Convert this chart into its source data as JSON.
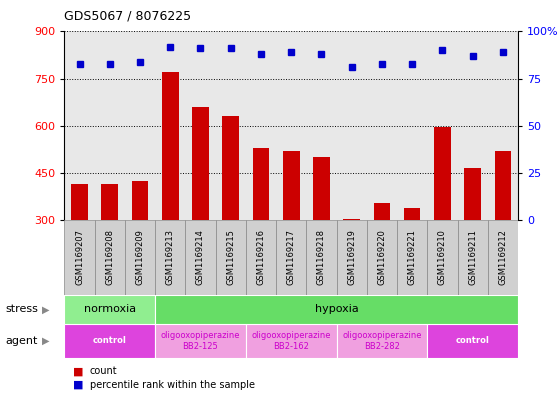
{
  "title": "GDS5067 / 8076225",
  "samples": [
    "GSM1169207",
    "GSM1169208",
    "GSM1169209",
    "GSM1169213",
    "GSM1169214",
    "GSM1169215",
    "GSM1169216",
    "GSM1169217",
    "GSM1169218",
    "GSM1169219",
    "GSM1169220",
    "GSM1169221",
    "GSM1169210",
    "GSM1169211",
    "GSM1169212"
  ],
  "counts": [
    415,
    415,
    425,
    770,
    660,
    630,
    530,
    520,
    500,
    305,
    355,
    340,
    595,
    465,
    520
  ],
  "percentiles": [
    83,
    83,
    84,
    92,
    91,
    91,
    88,
    89,
    88,
    81,
    83,
    83,
    90,
    87,
    89
  ],
  "ylim_left": [
    300,
    900
  ],
  "ylim_right": [
    0,
    100
  ],
  "yticks_left": [
    300,
    450,
    600,
    750,
    900
  ],
  "yticks_right": [
    0,
    25,
    50,
    75,
    100
  ],
  "bar_color": "#cc0000",
  "dot_color": "#0000cc",
  "plot_bg_color": "#e8e8e8",
  "label_row_bg": "#c8c8c8",
  "stress_groups": [
    {
      "label": "normoxia",
      "start": 0,
      "end": 3,
      "color": "#90ee90"
    },
    {
      "label": "hypoxia",
      "start": 3,
      "end": 15,
      "color": "#66dd66"
    }
  ],
  "agent_groups": [
    {
      "label": "control",
      "start": 0,
      "end": 3,
      "color": "#dd44dd",
      "text_color": "#ffffff",
      "bold": true
    },
    {
      "label": "oligooxopiperazine\nBB2-125",
      "start": 3,
      "end": 6,
      "color": "#f0a0e0",
      "text_color": "#cc00cc",
      "bold": false
    },
    {
      "label": "oligooxopiperazine\nBB2-162",
      "start": 6,
      "end": 9,
      "color": "#f0a0e0",
      "text_color": "#cc00cc",
      "bold": false
    },
    {
      "label": "oligooxopiperazine\nBB2-282",
      "start": 9,
      "end": 12,
      "color": "#f0a0e0",
      "text_color": "#cc00cc",
      "bold": false
    },
    {
      "label": "control",
      "start": 12,
      "end": 15,
      "color": "#dd44dd",
      "text_color": "#ffffff",
      "bold": true
    }
  ],
  "legend_items": [
    {
      "label": "count",
      "color": "#cc0000"
    },
    {
      "label": "percentile rank within the sample",
      "color": "#0000cc"
    }
  ],
  "stress_label": "stress",
  "agent_label": "agent"
}
